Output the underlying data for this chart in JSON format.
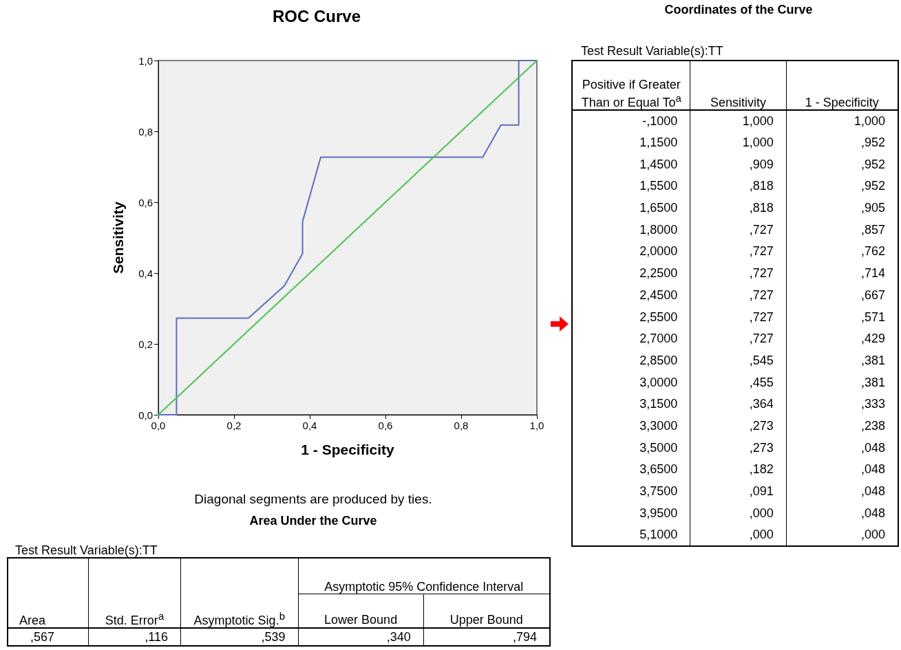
{
  "chart_data": [
    {
      "type": "line",
      "title": "ROC Curve",
      "xlabel": "1 - Specificity",
      "ylabel": "Sensitivity",
      "xlim": [
        0,
        1
      ],
      "ylim": [
        0,
        1
      ],
      "xticks": [
        {
          "value": 0,
          "label": "0,0"
        },
        {
          "value": 0.2,
          "label": "0,2"
        },
        {
          "value": 0.4,
          "label": "0,4"
        },
        {
          "value": 0.6,
          "label": "0,6"
        },
        {
          "value": 0.8,
          "label": "0,8"
        },
        {
          "value": 1,
          "label": "1,0"
        }
      ],
      "yticks": [
        {
          "value": 0,
          "label": "0,0"
        },
        {
          "value": 0.2,
          "label": "0,2"
        },
        {
          "value": 0.4,
          "label": "0,4"
        },
        {
          "value": 0.6,
          "label": "0,6"
        },
        {
          "value": 0.8,
          "label": "0,8"
        },
        {
          "value": 1,
          "label": "1,0"
        }
      ],
      "grid": false,
      "marker": "none",
      "line_style": "solid",
      "series": [
        {
          "color": "#5b6cbf",
          "x": [
            1,
            0.952,
            0.952,
            0.952,
            0.905,
            0.857,
            0.762,
            0.714,
            0.667,
            0.571,
            0.429,
            0.381,
            0.381,
            0.333,
            0.238,
            0.048,
            0.048,
            0.048,
            0.048,
            0
          ],
          "values": [
            1,
            1,
            0.909,
            0.818,
            0.818,
            0.727,
            0.727,
            0.727,
            0.727,
            0.727,
            0.727,
            0.545,
            0.455,
            0.364,
            0.273,
            0.273,
            0.182,
            0.091,
            0,
            0
          ]
        },
        {
          "color": "#4cc150",
          "x": [
            0,
            1
          ],
          "values": [
            0,
            1
          ]
        }
      ],
      "annotations": [
        "Diagonal segments are produced by ties."
      ]
    },
    {
      "type": "other",
      "title": "Coordinates of the Curve",
      "subtitle": "Test Result Variable(s):TT",
      "categories": [
        "Positive if Greater Than or Equal To$^{a}$",
        "Sensitivity",
        "1 - Specificity"
      ],
      "annotations": [
        "-,1000",
        "1,000",
        "1,000",
        "1,1500",
        "1,000",
        ",952",
        "1,4500",
        ",909",
        ",952",
        "1,5500",
        ",818",
        ",952",
        "1,6500",
        ",818",
        ",905",
        "1,8000",
        ",727",
        ",857",
        "2,0000",
        ",727",
        ",762",
        "2,2500",
        ",727",
        ",714",
        "2,4500",
        ",727",
        ",667",
        "2,5500",
        ",727",
        ",571",
        "2,7000",
        ",727",
        ",429",
        "2,8500",
        ",545",
        ",381",
        "3,0000",
        ",455",
        ",381",
        "3,1500",
        ",364",
        ",333",
        "3,3000",
        ",273",
        ",238",
        "3,5000",
        ",273",
        ",048",
        "3,6500",
        ",182",
        ",048",
        "3,7500",
        ",091",
        ",048",
        "3,9500",
        ",000",
        ",048",
        "5,1000",
        ",000",
        ",000"
      ]
    },
    {
      "type": "other",
      "title": "Area Under the Curve",
      "subtitle": "Test Result Variable(s):TT",
      "categories": [
        "Area",
        "Std. Error$^{a}$",
        "Asymptotic Sig.$^{b}$",
        "Lower Bound",
        "Upper Bound"
      ],
      "annotations": [
        "Asymptotic 95% Confidence Interval",
        ",567",
        ",116",
        ",539",
        ",340",
        ",794"
      ]
    }
  ]
}
